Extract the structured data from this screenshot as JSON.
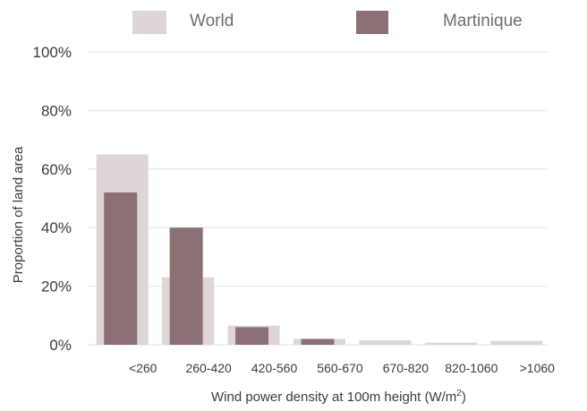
{
  "chart_data": {
    "type": "bar",
    "categories": [
      "<260",
      "260-420",
      "420-560",
      "560-670",
      "670-820",
      "820-1060",
      ">1060"
    ],
    "series": [
      {
        "name": "World",
        "values": [
          65,
          23,
          6.5,
          2,
          1.5,
          0.7,
          1.3
        ]
      },
      {
        "name": "Martinique",
        "values": [
          52,
          40,
          6,
          2,
          0,
          0,
          0
        ]
      }
    ],
    "xlabel": "Wind power density at 100m height (W/m",
    "xlabel_sup": "2",
    "xlabel_end": ")",
    "ylabel": "Proportion of land area",
    "ylim": [
      0,
      100
    ],
    "yticks": [
      "0%",
      "20%",
      "40%",
      "60%",
      "80%",
      "100%"
    ],
    "ytick_values": [
      0,
      20,
      40,
      60,
      80,
      100
    ],
    "grid": true,
    "legend_position": "top",
    "colors": {
      "World": "#ddd5d6",
      "Martinique": "#8b7074",
      "grid": "#ebebeb"
    }
  }
}
